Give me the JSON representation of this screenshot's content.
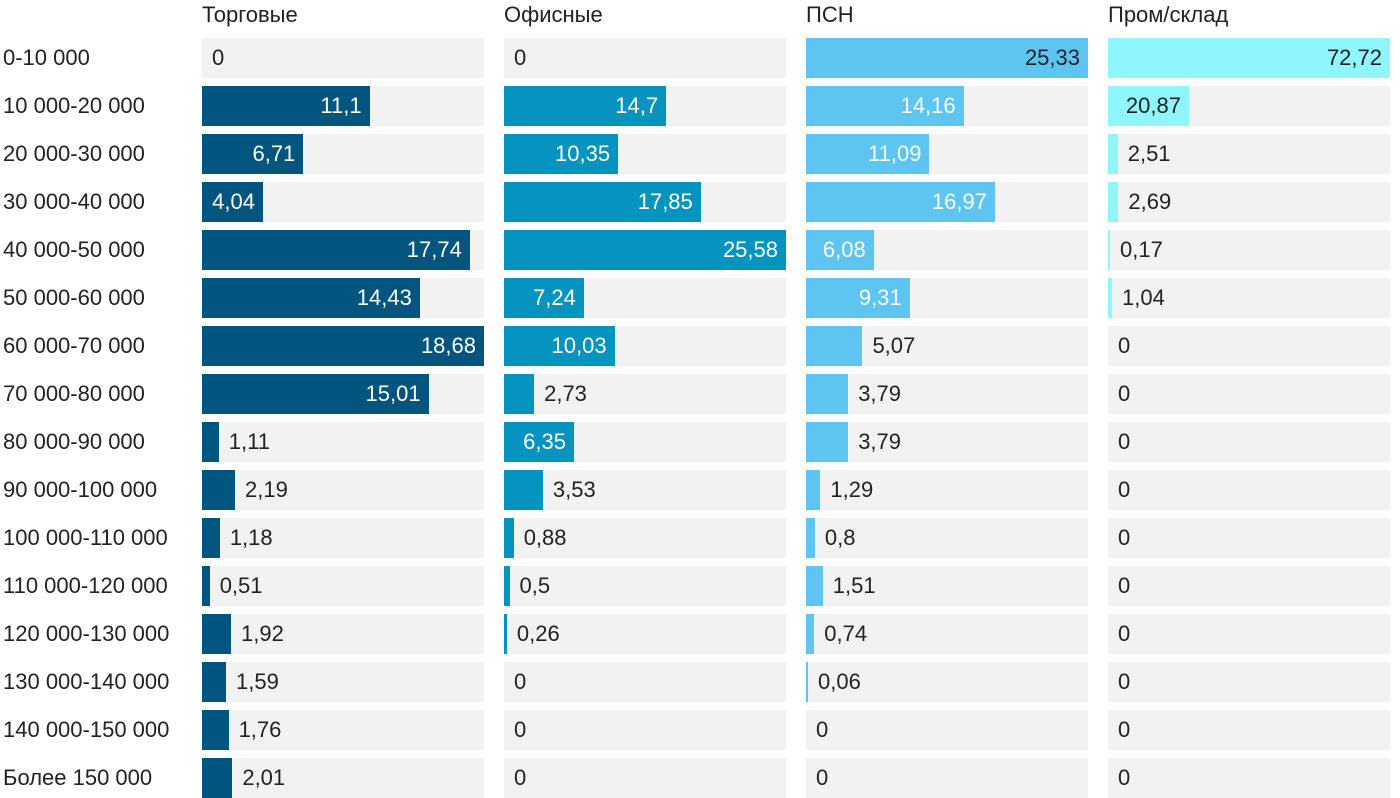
{
  "chart_data": {
    "type": "bar",
    "orientation": "horizontal",
    "layout": "small-multiples",
    "categories": [
      "0-10 000",
      "10 000-20 000",
      "20 000-30 000",
      "30 000-40 000",
      "40 000-50 000",
      "50 000-60 000",
      "60 000-70 000",
      "70 000-80 000",
      "80 000-90 000",
      "90 000-100 000",
      "100 000-110 000",
      "110 000-120 000",
      "120 000-130 000",
      "130 000-140 000",
      "140 000-150 000",
      "Более 150 000"
    ],
    "series": [
      {
        "name": "Торговые",
        "color": "#02557f",
        "max": 18.68,
        "values": [
          0,
          11.1,
          6.71,
          4.04,
          17.74,
          14.43,
          18.68,
          15.01,
          1.11,
          2.19,
          1.18,
          0.51,
          1.92,
          1.59,
          1.76,
          2.01
        ],
        "labels": [
          "0",
          "11,1",
          "6,71",
          "4,04",
          "17,74",
          "14,43",
          "18,68",
          "15,01",
          "1,11",
          "2,19",
          "1,18",
          "0,51",
          "1,92",
          "1,59",
          "1,76",
          "2,01"
        ]
      },
      {
        "name": "Офисные",
        "color": "#0593c0",
        "max": 25.58,
        "values": [
          0,
          14.7,
          10.35,
          17.85,
          25.58,
          7.24,
          10.03,
          2.73,
          6.35,
          3.53,
          0.88,
          0.5,
          0.26,
          0,
          0,
          0
        ],
        "labels": [
          "0",
          "14,7",
          "10,35",
          "17,85",
          "25,58",
          "7,24",
          "10,03",
          "2,73",
          "6,35",
          "3,53",
          "0,88",
          "0,5",
          "0,26",
          "0",
          "0",
          "0"
        ]
      },
      {
        "name": "ПСН",
        "color": "#5ec5f2",
        "max": 25.33,
        "values": [
          25.33,
          14.16,
          11.09,
          16.97,
          6.08,
          9.31,
          5.07,
          3.79,
          3.79,
          1.29,
          0.8,
          1.51,
          0.74,
          0.06,
          0,
          0
        ],
        "labels": [
          "25,33",
          "14,16",
          "11,09",
          "16,97",
          "6,08",
          "9,31",
          "5,07",
          "3,79",
          "3,79",
          "1,29",
          "0,8",
          "1,51",
          "0,74",
          "0,06",
          "0",
          "0"
        ]
      },
      {
        "name": "Пром/склад",
        "color": "#8ef6fc",
        "max": 72.72,
        "values": [
          72.72,
          20.87,
          2.51,
          2.69,
          0.17,
          1.04,
          0,
          0,
          0,
          0,
          0,
          0,
          0,
          0,
          0,
          0
        ],
        "labels": [
          "72,72",
          "20,87",
          "2,51",
          "2,69",
          "0,17",
          "1,04",
          "0",
          "0",
          "0",
          "0",
          "0",
          "0",
          "0",
          "0",
          "0",
          "0"
        ]
      }
    ],
    "title": "",
    "xlabel": "",
    "ylabel": "",
    "grid": false,
    "legend": "none"
  }
}
